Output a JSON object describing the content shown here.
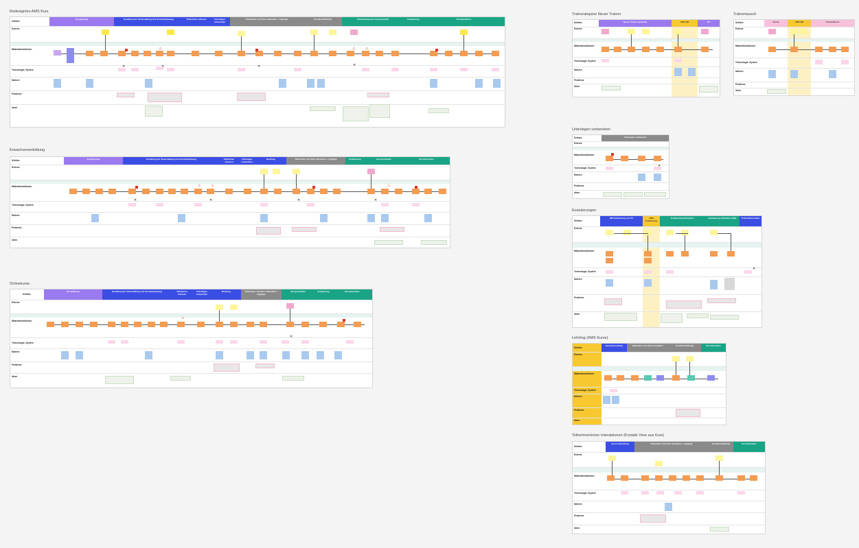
{
  "colors": {
    "purple": "#9b7af0",
    "blue": "#3b4ee4",
    "gray": "#8a8a8a",
    "green": "#1aa486",
    "yellow": "#f7c830",
    "pink": "#f2a6c8",
    "orange_sticky": "#f39c52",
    "teal_band": "#e6f3f1"
  },
  "icons": [
    "warning-icon",
    "tools-icon",
    "flag-icon",
    "checkmark-icon"
  ],
  "lanes_full": [
    "Sektion",
    "Externe",
    "Mitarbeiteraktionen",
    "Technologie, System",
    "Notizen",
    "Probleme",
    "Ideen"
  ],
  "boards": {
    "b1": {
      "title": "Redesigntes AMS Kurs",
      "phases": [
        "Kursplanung",
        "Erstellung der Veranstaltung und Grundeinplanung",
        "Teilnehmer erfassen",
        "Unterlagen vorbereiten",
        "Teilnehmer vom Kurs abmelden + Zugänge",
        "Kursdurchführung",
        "Verarbeitung der Kursprotokolle",
        "Evaluierung",
        "Kursabschluss"
      ]
    },
    "b2": {
      "title": "Erwachsenenbildung",
      "phases": [
        "Kursplanung",
        "Erstellung der Veranstaltung und Grundeinplanung",
        "Teilnehmer erfassen",
        "Unterlagen vorbereiten",
        "Buchung",
        "Teilnehmer vom Kurs abmelden + Zugänge",
        "Evaluierung",
        "Kursprotokolle",
        "Kursabschluss"
      ]
    },
    "b3": {
      "title": "Onlinekurse",
      "phases": [
        "Kursplanung",
        "Erstellung der Veranstaltung und Grundeinplanung",
        "Teilnehmer erfassen",
        "Unterlagen vorbereiten",
        "Buchung",
        "Teilnehmer vom Kurs abmelden + Zugänge",
        "Kursprotokolle",
        "Evaluierung",
        "Kursabschluss"
      ]
    },
    "b4": {
      "title": "Trainerakquise Neuer Trainer",
      "phases": [
        "Neuer Trainer (optional)",
        "AMS QM",
        "Ert"
      ]
    },
    "b5": {
      "title": "Trainertausch",
      "phases": [
        "Suche",
        "AMS QM",
        "Trainertausch"
      ]
    },
    "b6": {
      "title": "Unterlagen vorbereiten",
      "phases": [
        "Unterlagen vorbereiten"
      ]
    },
    "b7": {
      "title": "Evaluierungen",
      "phases": [
        "IBE Evaluierung vor Ort",
        "AMS Evaluierung",
        "Evaluierung Onlinekurs",
        "Evaluierung Onlinekurs (EB)",
        "Trainerinformation"
      ]
    },
    "b8": {
      "title": "Lehrling (AMS Kurse)",
      "phases": [
        "Kursvorbereitung",
        "Teilnehmer vom Kurs anmelden",
        "Kursdurchführung",
        "Kursabschluss"
      ]
    },
    "b9": {
      "title": "Teilnehmerinnen Interaktionen (Kontakt View aus Kurs)",
      "phases": [
        "Kursvorbereitung",
        "Teilnehmer vom Kurs abmelden + Zugänge",
        "Kursdurchführung",
        "Kursabschluss"
      ]
    }
  }
}
